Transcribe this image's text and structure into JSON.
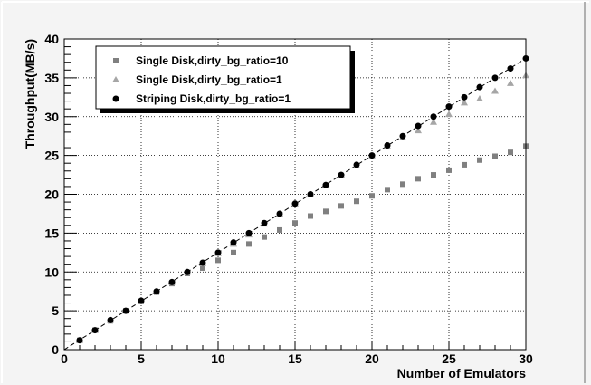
{
  "chart_data": {
    "type": "scatter",
    "title": "",
    "xlabel": "Number of Emulators",
    "ylabel": "Throughput(MB/s)",
    "xlim": [
      0,
      30
    ],
    "ylim": [
      0,
      40
    ],
    "x_ticks": [
      "0",
      "5",
      "10",
      "15",
      "20",
      "25",
      "30"
    ],
    "y_ticks": [
      "0",
      "5",
      "10",
      "15",
      "20",
      "25",
      "30",
      "35",
      "40"
    ],
    "grid": true,
    "legend_position": "top-left",
    "x": [
      1,
      2,
      3,
      4,
      5,
      6,
      7,
      8,
      9,
      10,
      11,
      12,
      13,
      14,
      15,
      16,
      17,
      18,
      19,
      20,
      21,
      22,
      23,
      24,
      25,
      26,
      27,
      28,
      29,
      30
    ],
    "series": [
      {
        "name": "Single Disk,dirty_bg_ratio=10",
        "marker": "square",
        "color": "#808080",
        "values": [
          1.2,
          2.5,
          3.7,
          5.0,
          6.2,
          7.4,
          8.5,
          9.8,
          10.5,
          11.5,
          12.5,
          13.6,
          14.5,
          15.4,
          16.3,
          17.2,
          17.8,
          18.5,
          19.1,
          19.8,
          20.6,
          21.3,
          22.0,
          22.5,
          23.1,
          23.8,
          24.4,
          24.9,
          25.4,
          26.2
        ]
      },
      {
        "name": "Single Disk,dirty_bg_ratio=1",
        "marker": "triangle",
        "color": "#a6a6a6",
        "values": [
          1.2,
          2.5,
          3.8,
          5.0,
          6.3,
          7.5,
          8.7,
          10.0,
          11.1,
          12.4,
          13.6,
          14.8,
          16.2,
          17.5,
          18.8,
          20.0,
          21.2,
          22.5,
          23.7,
          25.0,
          26.2,
          27.3,
          28.2,
          29.3,
          30.3,
          31.8,
          32.3,
          33.3,
          34.3,
          35.3
        ]
      },
      {
        "name": "Striping Disk,dirty_bg_ratio=1",
        "marker": "circle",
        "color": "#000000",
        "values": [
          1.2,
          2.5,
          3.8,
          5.0,
          6.3,
          7.5,
          8.7,
          10.0,
          11.2,
          12.5,
          13.8,
          15.0,
          16.3,
          17.5,
          18.8,
          20.0,
          21.2,
          22.5,
          23.8,
          25.0,
          26.3,
          27.5,
          28.8,
          30.0,
          31.3,
          32.5,
          33.8,
          35.0,
          36.2,
          37.5
        ]
      }
    ],
    "fit_line": {
      "style": "dashed",
      "color": "#000000",
      "x": [
        0,
        30
      ],
      "y": [
        0,
        37.5
      ]
    }
  }
}
